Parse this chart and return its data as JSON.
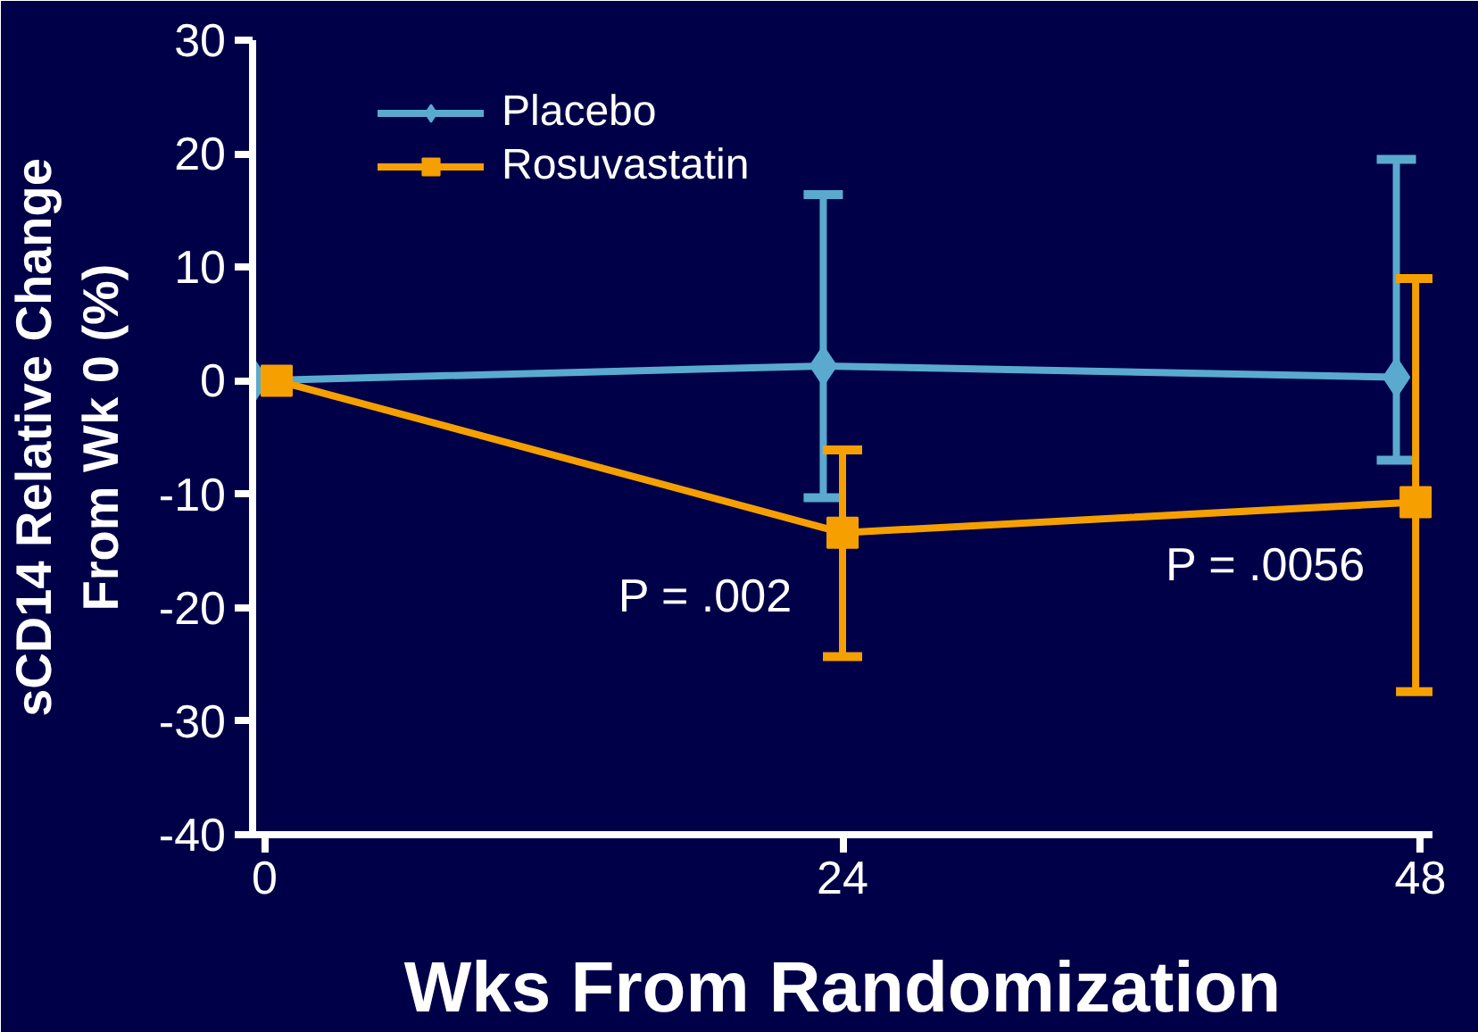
{
  "chart_data": {
    "type": "line",
    "xlabel": "Wks From Randomization",
    "ylabel": "sCD14 Relative Change\nFrom Wk 0 (%)",
    "xlim": [
      -0.5,
      48.5
    ],
    "xticks": [
      0,
      24,
      48
    ],
    "ylim": [
      -40,
      30
    ],
    "yticks": [
      -40,
      -30,
      -20,
      -10,
      0,
      10,
      20,
      30
    ],
    "series": [
      {
        "name": "Placebo",
        "color": "#5aaad0",
        "marker": "diamond",
        "x": [
          -0.4,
          23.2,
          47.0
        ],
        "values": [
          0,
          1.3,
          0.3
        ],
        "errors": [
          null,
          [
            -10.3,
            16.4
          ],
          [
            -7.0,
            19.5
          ]
        ]
      },
      {
        "name": "Rosuvastatin",
        "color": "#f5a000",
        "marker": "square",
        "x": [
          0.5,
          24.0,
          47.8
        ],
        "values": [
          0,
          -13.4,
          -10.7
        ],
        "errors": [
          null,
          [
            -24.3,
            -6.1
          ],
          [
            -27.4,
            9.0
          ]
        ]
      }
    ],
    "annotations": [
      {
        "text": "P = .002",
        "x": 24.0,
        "y": -13.4
      },
      {
        "text": "P = .0056",
        "x": 47.8,
        "y": -10.7
      }
    ],
    "grid": false,
    "legend": "top left",
    "line_style": "solid"
  }
}
